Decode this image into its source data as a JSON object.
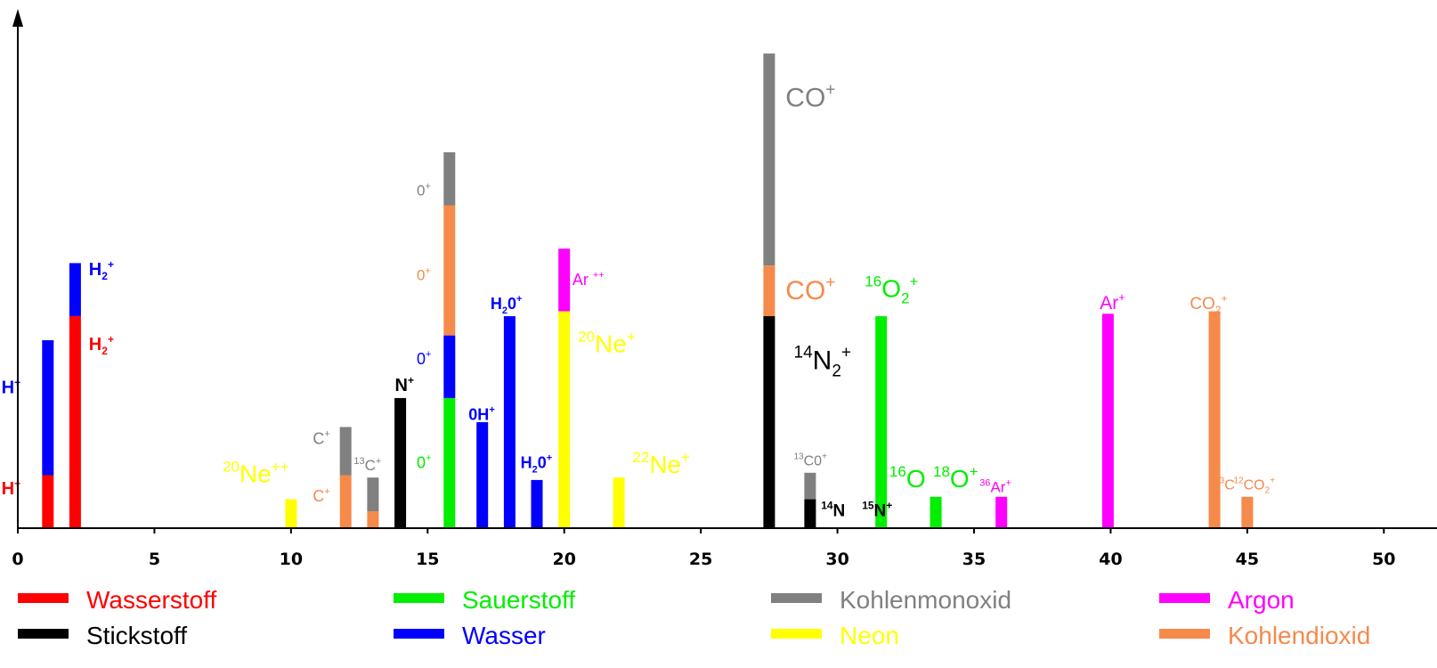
{
  "chart_data": {
    "type": "bar",
    "stacked": true,
    "xlim": [
      0,
      51
    ],
    "ylim": [
      0,
      100
    ],
    "x_ticks": [
      0,
      5,
      10,
      15,
      20,
      25,
      30,
      35,
      40,
      45,
      50
    ],
    "x_tick_labels": [
      "0",
      "5",
      "10",
      "15",
      "20",
      "25",
      "30",
      "35",
      "40",
      "45",
      "50"
    ],
    "grid": false,
    "legend_position": "bottom",
    "series": [
      {
        "name": "Wasserstoff",
        "color": "#ff0000"
      },
      {
        "name": "Stickstoff",
        "color": "#000000"
      },
      {
        "name": "Sauerstoff",
        "color": "#00ee00"
      },
      {
        "name": "Wasser",
        "color": "#0000ff"
      },
      {
        "name": "Kohlenmonoxid",
        "color": "#808080"
      },
      {
        "name": "Neon",
        "color": "#ffff00"
      },
      {
        "name": "Argon",
        "color": "#ff00ff"
      },
      {
        "name": "Kohlendioxid",
        "color": "#f58a4b"
      }
    ],
    "bars": [
      {
        "x": 1.1,
        "segments": [
          {
            "series": "Wasserstoff",
            "value": 11
          },
          {
            "series": "Wasser",
            "value": 28
          }
        ]
      },
      {
        "x": 2.1,
        "segments": [
          {
            "series": "Wasserstoff",
            "value": 44
          },
          {
            "series": "Wasser",
            "value": 11
          }
        ]
      },
      {
        "x": 10.0,
        "segments": [
          {
            "series": "Neon",
            "value": 6
          }
        ]
      },
      {
        "x": 12.0,
        "segments": [
          {
            "series": "Kohlendioxid",
            "value": 11
          },
          {
            "series": "Kohlenmonoxid",
            "value": 10
          }
        ]
      },
      {
        "x": 13.0,
        "segments": [
          {
            "series": "Kohlendioxid",
            "value": 3.5
          },
          {
            "series": "Kohlenmonoxid",
            "value": 7
          }
        ]
      },
      {
        "x": 14.0,
        "segments": [
          {
            "series": "Stickstoff",
            "value": 27
          }
        ]
      },
      {
        "x": 15.8,
        "segments": [
          {
            "series": "Sauerstoff",
            "value": 27
          },
          {
            "series": "Wasser",
            "value": 13
          },
          {
            "series": "Kohlendioxid",
            "value": 27
          },
          {
            "series": "Kohlenmonoxid",
            "value": 11
          }
        ]
      },
      {
        "x": 17.0,
        "segments": [
          {
            "series": "Wasser",
            "value": 22
          }
        ]
      },
      {
        "x": 18.0,
        "segments": [
          {
            "series": "Wasser",
            "value": 44
          }
        ]
      },
      {
        "x": 19.0,
        "segments": [
          {
            "series": "Wasser",
            "value": 10
          }
        ]
      },
      {
        "x": 20.0,
        "segments": [
          {
            "series": "Neon",
            "value": 45
          },
          {
            "series": "Argon",
            "value": 13
          }
        ]
      },
      {
        "x": 22.0,
        "segments": [
          {
            "series": "Neon",
            "value": 10.5
          }
        ]
      },
      {
        "x": 27.5,
        "segments": [
          {
            "series": "Stickstoff",
            "value": 44
          },
          {
            "series": "Kohlendioxid",
            "value": 10.5
          },
          {
            "series": "Kohlenmonoxid",
            "value": 44
          }
        ]
      },
      {
        "x": 29.0,
        "segments": [
          {
            "series": "Stickstoff",
            "value": 6
          },
          {
            "series": "Kohlenmonoxid",
            "value": 5.5
          }
        ]
      },
      {
        "x": 31.6,
        "segments": [
          {
            "series": "Sauerstoff",
            "value": 44
          }
        ]
      },
      {
        "x": 33.6,
        "segments": [
          {
            "series": "Sauerstoff",
            "value": 6.5
          }
        ]
      },
      {
        "x": 36.0,
        "segments": [
          {
            "series": "Argon",
            "value": 6.5
          }
        ]
      },
      {
        "x": 39.9,
        "segments": [
          {
            "series": "Argon",
            "value": 44.5
          }
        ]
      },
      {
        "x": 43.8,
        "segments": [
          {
            "series": "Kohlendioxid",
            "value": 45
          }
        ]
      },
      {
        "x": 45.0,
        "segments": [
          {
            "series": "Kohlendioxid",
            "value": 6.5
          }
        ]
      }
    ],
    "annotations": [
      {
        "pre": "",
        "main": "H",
        "sup": "+",
        "sub": "",
        "post": "",
        "x": -0.6,
        "y": 7,
        "color": "#ff0000",
        "size": 20,
        "bold": true
      },
      {
        "pre": "",
        "main": "H",
        "sup": "+",
        "sub": "",
        "post": "",
        "x": -0.6,
        "y": 28,
        "color": "#0000ff",
        "size": 20,
        "bold": true
      },
      {
        "pre": "",
        "main": "H",
        "sup": "+",
        "sub": "2",
        "post": "",
        "x": 2.6,
        "y": 37,
        "color": "#ff0000",
        "size": 20,
        "bold": true
      },
      {
        "pre": "",
        "main": "H",
        "sup": "+",
        "sub": "2",
        "post": "",
        "x": 2.6,
        "y": 52.5,
        "color": "#0000ff",
        "size": 20,
        "bold": true
      },
      {
        "pre": "20",
        "main": "Ne",
        "sup": "++",
        "sub": "",
        "post": "",
        "x": 7.5,
        "y": 9.5,
        "color": "#ffff00",
        "size": 28,
        "bold": false
      },
      {
        "pre": "",
        "main": "C",
        "sup": "+",
        "sub": "",
        "post": "",
        "x": 10.8,
        "y": 17.5,
        "color": "#808080",
        "size": 18,
        "bold": false
      },
      {
        "pre": "",
        "main": "C",
        "sup": "+",
        "sub": "",
        "post": "",
        "x": 10.8,
        "y": 5.5,
        "color": "#f58a4b",
        "size": 18,
        "bold": false
      },
      {
        "pre": "13",
        "main": "C",
        "sup": "+",
        "sub": "",
        "post": "",
        "x": 12.3,
        "y": 12,
        "color": "#808080",
        "size": 17,
        "bold": false
      },
      {
        "pre": "",
        "main": "N",
        "sup": "+",
        "sub": "",
        "post": "",
        "x": 13.8,
        "y": 28.5,
        "color": "#000000",
        "size": 20,
        "bold": true
      },
      {
        "pre": "",
        "main": "0",
        "sup": "+",
        "sub": "",
        "post": "",
        "x": 14.6,
        "y": 69,
        "color": "#808080",
        "size": 17,
        "bold": false
      },
      {
        "pre": "",
        "main": "0",
        "sup": "+",
        "sub": "",
        "post": "",
        "x": 14.6,
        "y": 51.5,
        "color": "#f58a4b",
        "size": 17,
        "bold": false
      },
      {
        "pre": "",
        "main": "0",
        "sup": "+",
        "sub": "",
        "post": "",
        "x": 14.6,
        "y": 34,
        "color": "#0000ff",
        "size": 18,
        "bold": false
      },
      {
        "pre": "",
        "main": "0",
        "sup": "+",
        "sub": "",
        "post": "",
        "x": 14.6,
        "y": 12.5,
        "color": "#00ee00",
        "size": 18,
        "bold": false
      },
      {
        "pre": "",
        "main": "0H",
        "sup": "+",
        "sub": "",
        "post": "",
        "x": 16.5,
        "y": 22.5,
        "color": "#0000ff",
        "size": 18,
        "bold": true
      },
      {
        "pre": "",
        "main": "H",
        "sup": "+",
        "sub": "2",
        "post": "0",
        "x": 17.3,
        "y": 45.5,
        "color": "#0000ff",
        "size": 18,
        "bold": true
      },
      {
        "pre": "",
        "main": "H",
        "sup": "+",
        "sub": "2",
        "post": "0",
        "x": 18.4,
        "y": 12.5,
        "color": "#0000ff",
        "size": 18,
        "bold": true
      },
      {
        "pre": "",
        "main": "Ar ",
        "sup": "++",
        "sub": "",
        "post": "",
        "x": 20.3,
        "y": 50.5,
        "color": "#ff00ff",
        "size": 18,
        "bold": false
      },
      {
        "pre": "20",
        "main": "Ne",
        "sup": "+",
        "sub": "",
        "post": "",
        "x": 20.5,
        "y": 36.5,
        "color": "#ffff00",
        "size": 28,
        "bold": false
      },
      {
        "pre": "22",
        "main": "Ne",
        "sup": "+",
        "sub": "",
        "post": "",
        "x": 22.5,
        "y": 11.5,
        "color": "#ffff00",
        "size": 28,
        "bold": false
      },
      {
        "pre": "",
        "main": "CO",
        "sup": "+",
        "sub": "",
        "post": "",
        "x": 28.1,
        "y": 87.5,
        "color": "#808080",
        "size": 30,
        "bold": false
      },
      {
        "pre": "",
        "main": "CO",
        "sup": "+",
        "sub": "",
        "post": "",
        "x": 28.1,
        "y": 47.5,
        "color": "#f58a4b",
        "size": 30,
        "bold": false
      },
      {
        "pre": "14",
        "main": "N",
        "sup": "+",
        "sub": "2",
        "post": "",
        "x": 28.4,
        "y": 33,
        "color": "#000000",
        "size": 30,
        "bold": false
      },
      {
        "pre": "13",
        "main": "C0",
        "sup": "+",
        "sub": "",
        "post": "",
        "x": 28.4,
        "y": 13,
        "color": "#808080",
        "size": 16,
        "bold": false
      },
      {
        "pre": "14",
        "main": "N ",
        "sup": "",
        "sub": "",
        "post": "",
        "x": 29.4,
        "y": 2.5,
        "color": "#000000",
        "size": 19,
        "bold": true
      },
      {
        "pre": "15",
        "main": "N",
        "sup": "+",
        "sub": "",
        "post": "",
        "x": 30.9,
        "y": 2.5,
        "color": "#000000",
        "size": 19,
        "bold": true
      },
      {
        "pre": "16",
        "main": "O",
        "sup": "+",
        "sub": "2",
        "post": "",
        "x": 31.0,
        "y": 48,
        "color": "#00ee00",
        "size": 28,
        "bold": false
      },
      {
        "pre": "16",
        "main": "O",
        "sup": "",
        "sub": "",
        "post": "",
        "x": 31.9,
        "y": 8.5,
        "color": "#00ee00",
        "size": 28,
        "bold": false
      },
      {
        "pre": "18",
        "main": "O",
        "sup": "+",
        "sub": "",
        "post": "",
        "x": 33.5,
        "y": 8.5,
        "color": "#00ee00",
        "size": 28,
        "bold": false
      },
      {
        "pre": "36",
        "main": "Ar",
        "sup": "+",
        "sub": "",
        "post": "",
        "x": 35.2,
        "y": 7.5,
        "color": "#ff00ff",
        "size": 17,
        "bold": false
      },
      {
        "pre": "",
        "main": "Ar",
        "sup": "+",
        "sub": "",
        "post": "",
        "x": 39.6,
        "y": 45.5,
        "color": "#ff00ff",
        "size": 21,
        "bold": false
      },
      {
        "pre": "",
        "main": "CO",
        "sup": "+",
        "sub": "2",
        "post": "",
        "x": 42.9,
        "y": 45.5,
        "color": "#f58a4b",
        "size": 19,
        "bold": false
      },
      {
        "pre": "13",
        "main": "C",
        "sup": "",
        "sub": "",
        "post": "",
        "x": 43.8,
        "y": 8,
        "color": "#f58a4b",
        "size": 16,
        "bold": false
      },
      {
        "pre": "12",
        "main": "CO",
        "sup": "+",
        "sub": "2",
        "post": "",
        "x": 44.5,
        "y": 8,
        "color": "#f58a4b",
        "size": 16,
        "bold": false
      }
    ]
  }
}
